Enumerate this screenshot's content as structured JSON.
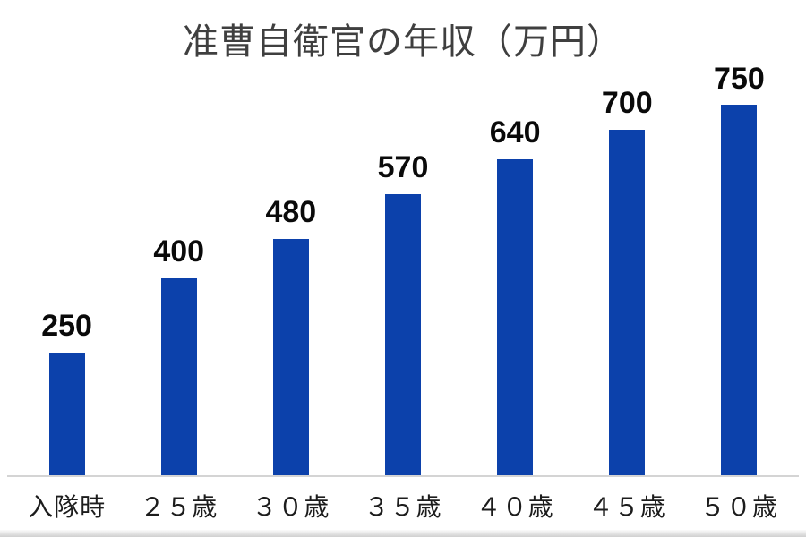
{
  "chart_data": {
    "type": "bar",
    "title": "准曹自衛官の年収（万円）",
    "categories": [
      "入隊時",
      "２５歳",
      "３０歳",
      "３５歳",
      "４０歳",
      "４５歳",
      "５０歳"
    ],
    "values": [
      250,
      400,
      480,
      570,
      640,
      700,
      750
    ],
    "xlabel": "",
    "ylabel": "",
    "ylim": [
      0,
      850
    ],
    "grid": false,
    "legend_position": "none",
    "data_labels": true
  },
  "colors": {
    "bar": "#0c41ab",
    "title_text": "#3f3f3f",
    "value_label": "#0a0a0a",
    "tick_label": "#1c1c1c",
    "axis_line": "#d4d4d4",
    "background": "#ffffff"
  }
}
